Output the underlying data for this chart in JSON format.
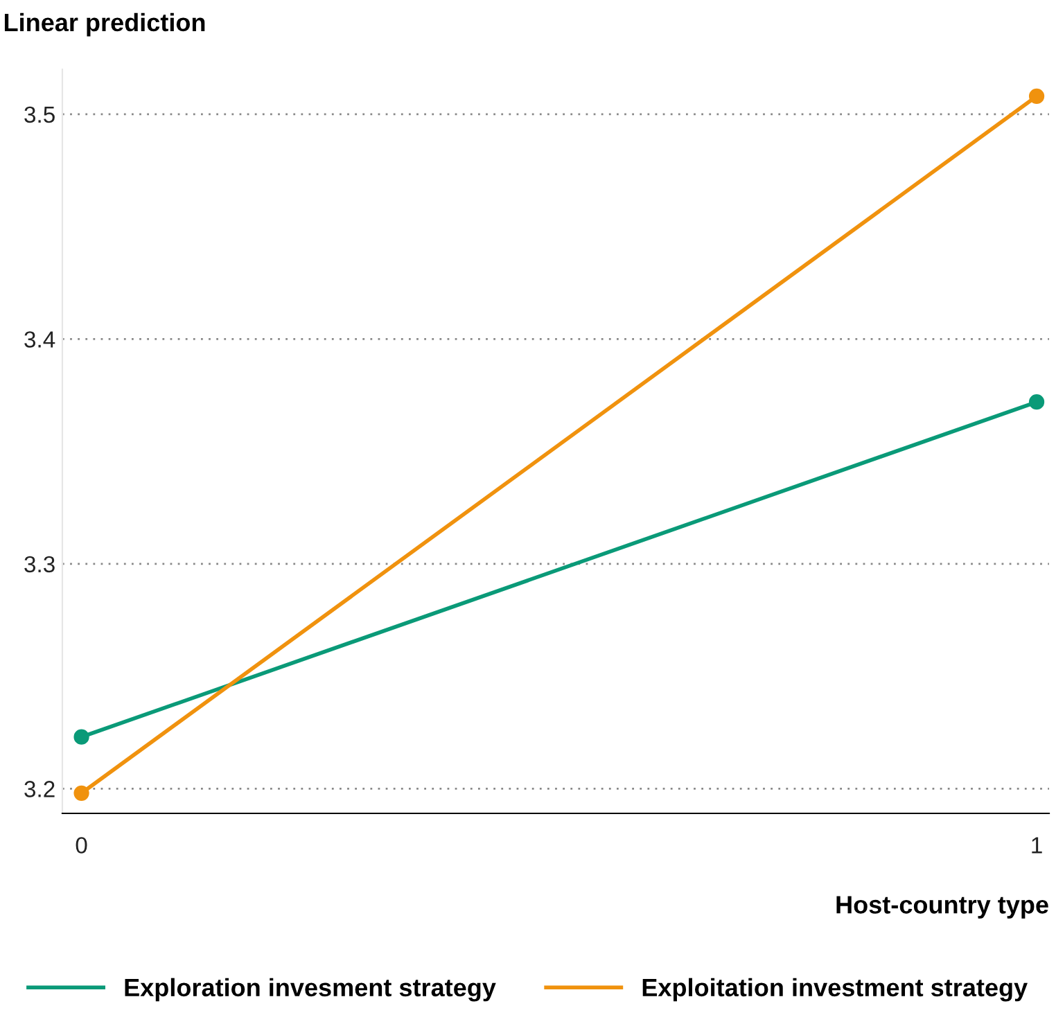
{
  "chart_data": {
    "type": "line",
    "ylabel": "Linear prediction",
    "xlabel": "Host-country type",
    "x": [
      0,
      1
    ],
    "series": [
      {
        "name": "Exploration invesment strategy",
        "color": "#0a9a78",
        "values": [
          3.223,
          3.372
        ]
      },
      {
        "name": "Exploitation investment strategy",
        "color": "#f0920e",
        "values": [
          3.198,
          3.508
        ]
      }
    ],
    "xlim": [
      -0.02,
      1.013
    ],
    "ylim": [
      3.189,
      3.52
    ],
    "xticks": [
      0,
      1
    ],
    "yticks": [
      3.2,
      3.3,
      3.4,
      3.5
    ],
    "grid": "y",
    "legend": "bottom",
    "marker": "circle",
    "line_style": "solid"
  }
}
